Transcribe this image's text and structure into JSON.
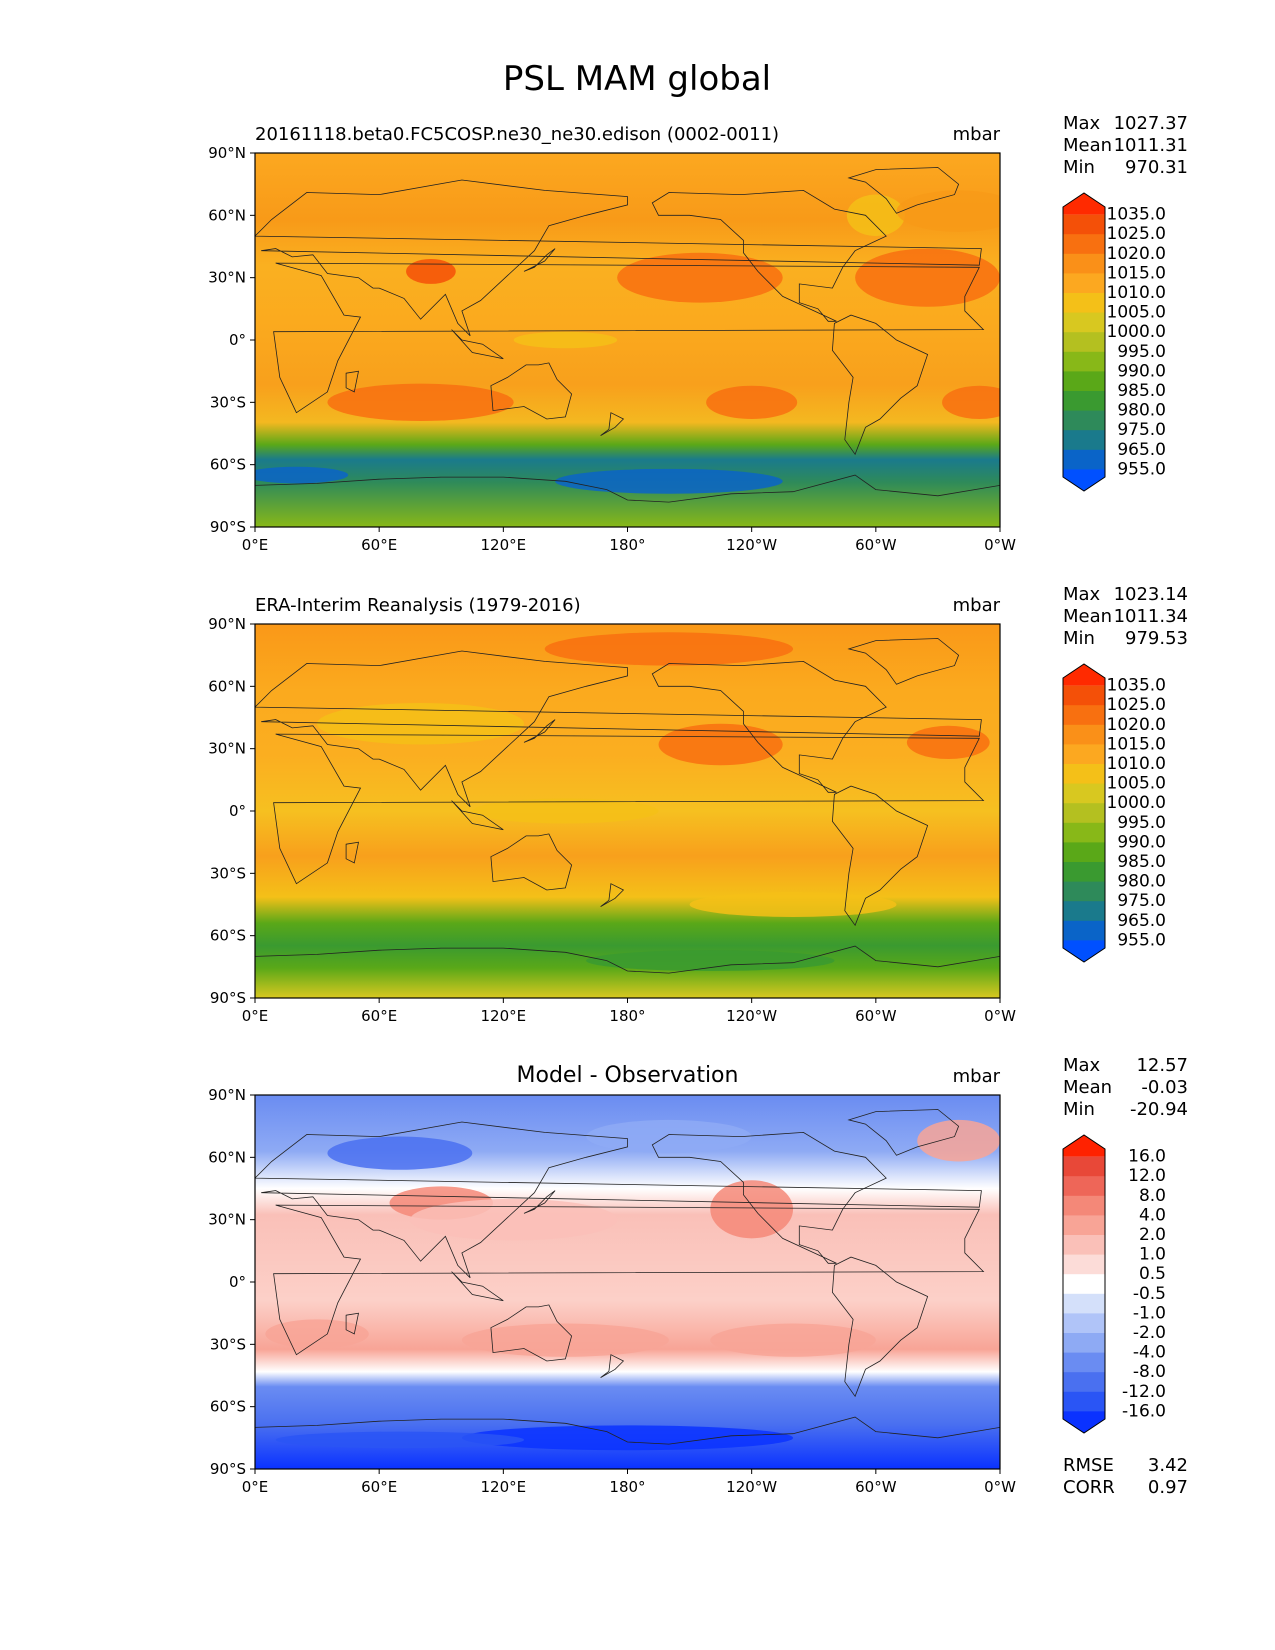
{
  "figure_title": "PSL MAM global",
  "panels": [
    {
      "id": "test",
      "title": "20161118.beta0.FC5COSP.ne30_ne30.edison (0002-0011)",
      "units": "mbar",
      "stats": [
        {
          "label": "Max",
          "value": "1027.37"
        },
        {
          "label": "Mean",
          "value": "1011.31"
        },
        {
          "label": "Min",
          "value": "970.31"
        }
      ],
      "colorbar_ticks": [
        "1035.0",
        "1025.0",
        "1020.0",
        "1015.0",
        "1010.0",
        "1005.0",
        "1000.0",
        "995.0",
        "990.0",
        "985.0",
        "980.0",
        "975.0",
        "965.0",
        "955.0"
      ],
      "footer": []
    },
    {
      "id": "reference",
      "title": "ERA-Interim Reanalysis (1979-2016)",
      "units": "mbar",
      "stats": [
        {
          "label": "Max",
          "value": "1023.14"
        },
        {
          "label": "Mean",
          "value": "1011.34"
        },
        {
          "label": "Min",
          "value": "979.53"
        }
      ],
      "colorbar_ticks": [
        "1035.0",
        "1025.0",
        "1020.0",
        "1015.0",
        "1010.0",
        "1005.0",
        "1000.0",
        "995.0",
        "990.0",
        "985.0",
        "980.0",
        "975.0",
        "965.0",
        "955.0"
      ],
      "footer": []
    },
    {
      "id": "difference",
      "title": "Model - Observation",
      "units": "mbar",
      "stats": [
        {
          "label": "Max",
          "value": "12.57"
        },
        {
          "label": "Mean",
          "value": "-0.03"
        },
        {
          "label": "Min",
          "value": "-20.94"
        }
      ],
      "colorbar_ticks": [
        "16.0",
        "12.0",
        "8.0",
        "4.0",
        "2.0",
        "1.0",
        "0.5",
        "-0.5",
        "-1.0",
        "-2.0",
        "-4.0",
        "-8.0",
        "-12.0",
        "-16.0"
      ],
      "footer": [
        {
          "label": "RMSE",
          "value": "3.42"
        },
        {
          "label": "CORR",
          "value": "0.97"
        }
      ]
    }
  ],
  "lat_ticks": [
    "90°N",
    "60°N",
    "30°N",
    "0°",
    "30°S",
    "60°S",
    "90°S"
  ],
  "lon_ticks": [
    "0°E",
    "60°E",
    "120°E",
    "180°",
    "120°W",
    "60°W",
    "0°W"
  ],
  "colors": {
    "psl": [
      "#0050ff",
      "#0a64c8",
      "#1a7a8c",
      "#2e8a5a",
      "#3a9a30",
      "#5aa818",
      "#88b818",
      "#b4c020",
      "#d8c820",
      "#f4c018",
      "#fca820",
      "#fa9018",
      "#f87010",
      "#f45008",
      "#ff2a00"
    ],
    "diff": [
      "#0a32ff",
      "#2a55f5",
      "#4a70f0",
      "#6a8cf2",
      "#8eaaf4",
      "#b0c4f8",
      "#d4e0fa",
      "#ffffff",
      "#fcdcd8",
      "#fac0b8",
      "#f8a496",
      "#f48878",
      "#ee6658",
      "#e84838",
      "#ff2200"
    ]
  }
}
